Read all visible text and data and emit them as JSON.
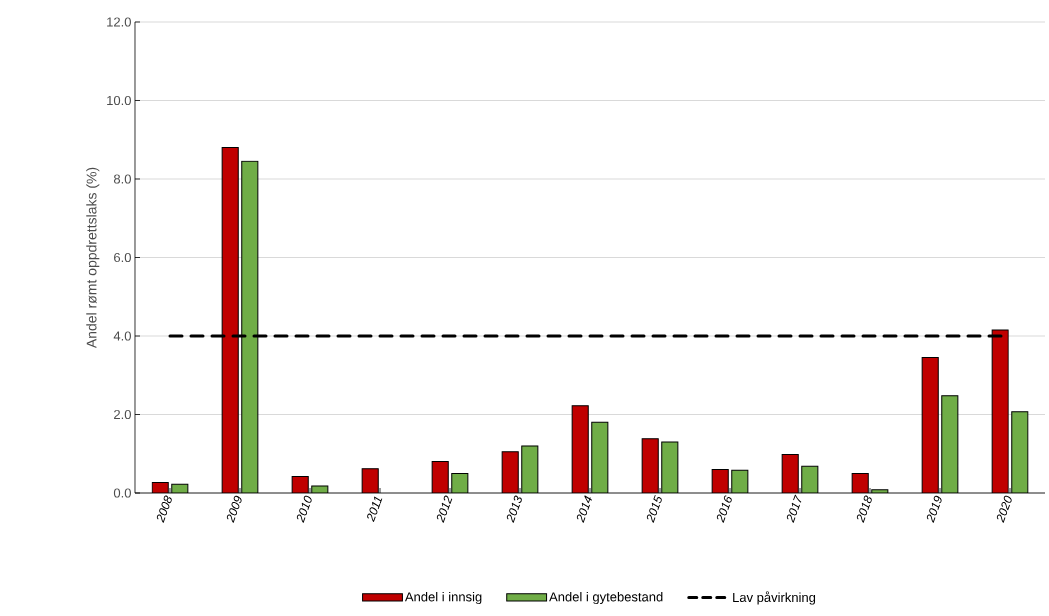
{
  "chart_data": {
    "type": "bar",
    "ylabel": "Andel rømt oppdrettslaks (%)",
    "categories": [
      "2008",
      "2009",
      "2010",
      "2011",
      "2012",
      "2013",
      "2014",
      "2015",
      "2016",
      "2017",
      "2018",
      "2019",
      "2020"
    ],
    "series": [
      {
        "name": "Andel i innsig",
        "color": "#c00000",
        "values": [
          0.27,
          8.8,
          0.42,
          0.62,
          0.8,
          1.05,
          2.22,
          1.38,
          0.6,
          0.98,
          0.5,
          3.45,
          4.15
        ]
      },
      {
        "name": "Andel i gytebestand",
        "color": "#70ad47",
        "values": [
          0.22,
          8.45,
          0.18,
          null,
          0.5,
          1.2,
          1.8,
          1.3,
          0.58,
          0.68,
          0.08,
          2.48,
          2.07
        ]
      },
      {
        "name": "Lav påvirkning",
        "type": "line",
        "color": "#000000",
        "line_style": "dashed",
        "marker": "none",
        "values": [
          4.0,
          4.0,
          4.0,
          4.0,
          4.0,
          4.0,
          4.0,
          4.0,
          4.0,
          4.0,
          4.0,
          4.0,
          4.0
        ]
      }
    ],
    "ylim": [
      0,
      12
    ],
    "yticks": [
      {
        "value": 0,
        "label": "0.0"
      },
      {
        "value": 2,
        "label": "2.0"
      },
      {
        "value": 4,
        "label": "4.0"
      },
      {
        "value": 6,
        "label": "6.0"
      },
      {
        "value": 8,
        "label": "8.0"
      },
      {
        "value": 10,
        "label": "10.0"
      },
      {
        "value": 12,
        "label": "12.0"
      }
    ],
    "grid": "y",
    "legend": "bottom"
  }
}
